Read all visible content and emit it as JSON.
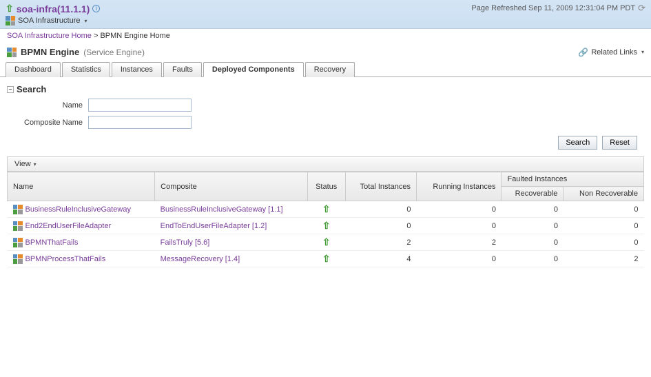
{
  "header": {
    "infra_name": "soa-infra(11.1.1)",
    "soa_label": "SOA Infrastructure",
    "refresh_text": "Page Refreshed Sep 11, 2009 12:31:04 PM PDT"
  },
  "breadcrumb": {
    "home": "SOA Infrastructure Home",
    "current": "BPMN Engine Home"
  },
  "engine": {
    "title": "BPMN Engine",
    "subtitle": "(Service Engine)",
    "related": "Related Links"
  },
  "tabs": [
    "Dashboard",
    "Statistics",
    "Instances",
    "Faults",
    "Deployed Components",
    "Recovery"
  ],
  "active_tab": 4,
  "search": {
    "title": "Search",
    "name_label": "Name",
    "composite_label": "Composite Name",
    "search_btn": "Search",
    "reset_btn": "Reset"
  },
  "view_label": "View",
  "columns": {
    "name": "Name",
    "composite": "Composite",
    "status": "Status",
    "total": "Total Instances",
    "running": "Running Instances",
    "faulted": "Faulted Instances",
    "recoverable": "Recoverable",
    "nonrecoverable": "Non Recoverable"
  },
  "rows": [
    {
      "name": "BusinessRuleInclusiveGateway",
      "composite": "BusinessRuleInclusiveGateway [1.1]",
      "total": 0,
      "running": 0,
      "recoverable": 0,
      "nonrecoverable": 0
    },
    {
      "name": "End2EndUserFileAdapter",
      "composite": "EndToEndUserFileAdapter [1.2]",
      "total": 0,
      "running": 0,
      "recoverable": 0,
      "nonrecoverable": 0
    },
    {
      "name": "BPMNThatFails",
      "composite": "FailsTruly [5.6]",
      "total": 2,
      "running": 2,
      "recoverable": 0,
      "nonrecoverable": 0
    },
    {
      "name": "BPMNProcessThatFails",
      "composite": "MessageRecovery [1.4]",
      "total": 4,
      "running": 0,
      "recoverable": 0,
      "nonrecoverable": 2
    }
  ]
}
